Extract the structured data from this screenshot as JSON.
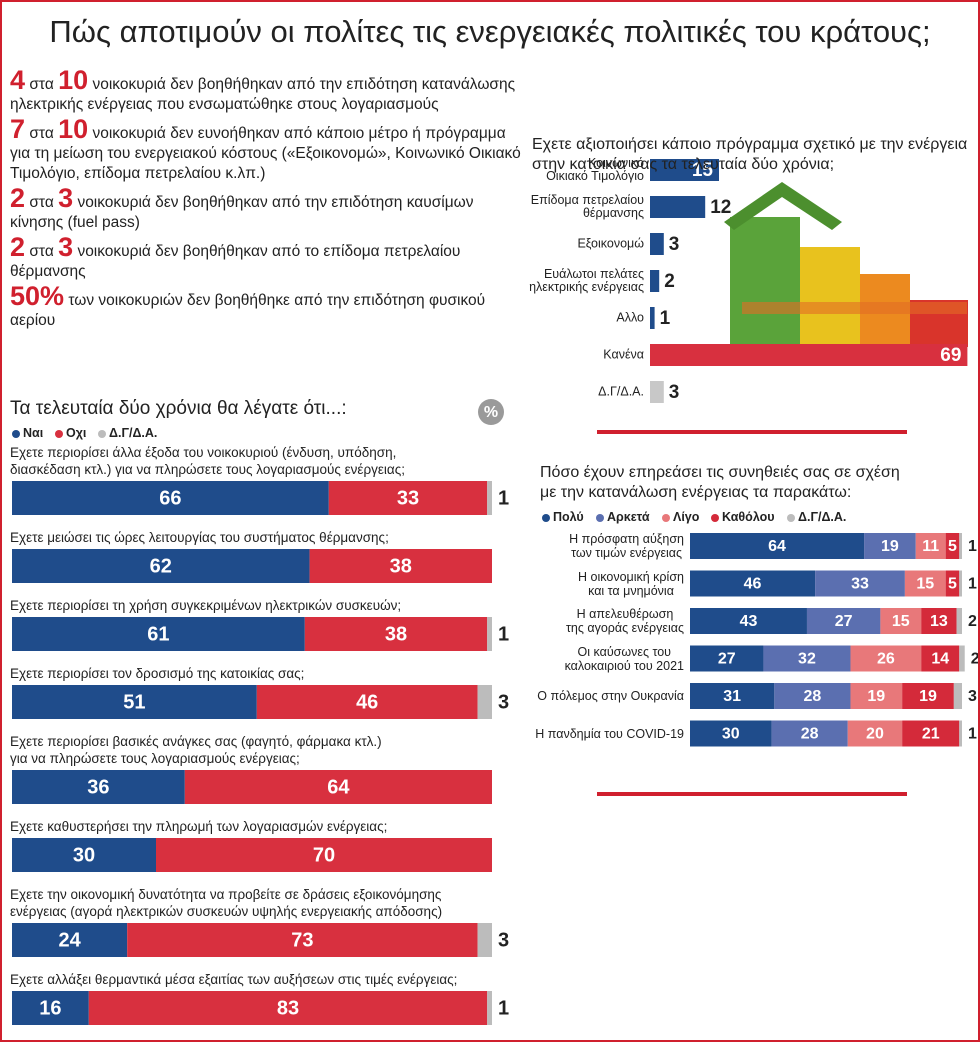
{
  "title": "Πώς αποτιμούν οι πολίτες τις ενεργειακές πολιτικές του κράτους;",
  "facts": [
    {
      "lead": "4",
      "mid": "στα",
      "lead2": "10",
      "text": "νοικοκυριά δεν βοηθήθηκαν από την επιδότηση κατανάλωσης ηλεκτρικής ενέργειας που ενσωματώθηκε στους λογαριασμούς"
    },
    {
      "lead": "7",
      "mid": "στα",
      "lead2": "10",
      "text": "νοικοκυριά δεν ευνοήθηκαν από κάποιο μέτρο ή πρόγραμμα για τη μείωση του ενεργειακού κόστους («Εξοικονομώ», Κοινωνικό Οικιακό Τιμολόγιο, επίδομα πετρελαίου κ.λπ.)"
    },
    {
      "lead": "2",
      "mid": "στα",
      "lead2": "3",
      "text": "νοικοκυριά δεν βοηθήθηκαν από την επιδότηση καυσίμων κίνησης (fuel pass)"
    },
    {
      "lead": "2",
      "mid": "στα",
      "lead2": "3",
      "text": "νοικοκυριά δεν βοηθήθηκαν από το επίδομα πετρελαίου θέρμανσης"
    },
    {
      "lead": "50%",
      "text": "των νοικοκυριών δεν βοηθήθηκε από την επιδότηση φυσικού αερίου"
    }
  ],
  "chart_data": [
    {
      "type": "stacked-bar",
      "title": "Τα τελευταία δύο χρόνια θα λέγατε ότι...:",
      "unit_badge": "%",
      "categories": [
        "Εχετε περιορίσει άλλα έξοδα του νοικοκυριού (ένδυση, υπόδηση,\nδιασκέδαση κτλ.) για να πληρώσετε τους λογαριασμούς ενέργειας;",
        "Εχετε μειώσει τις ώρες λειτουργίας του συστήματος θέρμανσης;",
        "Εχετε περιορίσει τη χρήση συγκεκριμένων ηλεκτρικών συσκευών;",
        "Εχετε περιορίσει τον δροσισμό της κατοικίας σας;",
        "Εχετε περιορίσει βασικές ανάγκες σας (φαγητό, φάρμακα κτλ.)\nγια να πληρώσετε τους λογαριασμούς ενέργειας;",
        "Εχετε καθυστερήσει την πληρωμή των λογαριασμών ενέργειας;",
        "Εχετε την οικονομική δυνατότητα να προβείτε σε δράσεις εξοικονόμησης\nενέργειας (αγορά ηλεκτρικών συσκευών υψηλής ενεργειακής απόδοσης)",
        "Εχετε αλλάξει θερμαντικά μέσα εξαιτίας των αυξήσεων στις τιμές ενέργειας;"
      ],
      "series": [
        {
          "name": "Ναι",
          "color": "#1f4c8b",
          "values": [
            66,
            62,
            61,
            51,
            36,
            30,
            24,
            16
          ]
        },
        {
          "name": "Οχι",
          "color": "#d8303f",
          "values": [
            33,
            38,
            38,
            46,
            64,
            70,
            73,
            83
          ]
        },
        {
          "name": "Δ.Γ/Δ.Α.",
          "color": "#bcbcbc",
          "values": [
            1,
            null,
            1,
            3,
            null,
            null,
            3,
            1
          ]
        }
      ],
      "xlim": [
        0,
        100
      ]
    },
    {
      "type": "bar",
      "title": "Εχετε αξιοποιήσει κάποιο πρόγραμμα σχετικό με την ενέργεια στην κατοικία σας τα τελευταία δύο χρόνια;",
      "categories": [
        "Κοινωνικό\nΟικιακό Τιμολόγιο",
        "Επίδομα πετρελαίου\nθέρμανσης",
        "Εξοικονομώ",
        "Ευάλωτοι πελάτες\nηλεκτρικής ενέργειας",
        "Αλλο",
        "Κανένα",
        "Δ.Γ/Δ.Α."
      ],
      "values": [
        15,
        12,
        3,
        2,
        1,
        69,
        3
      ],
      "colors": [
        "#1f4c8b",
        "#1f4c8b",
        "#1f4c8b",
        "#1f4c8b",
        "#1f4c8b",
        "#d8303f",
        "#c8c8c8"
      ],
      "xlim": [
        0,
        70
      ]
    },
    {
      "type": "stacked-bar",
      "title": "Πόσο έχουν επηρεάσει τις συνηθειές σας σε σχέση\nμε την κατανάλωση ενέργειας τα παρακάτω:",
      "categories": [
        "Η πρόσφατη αύξηση\nτων τιμών ενέργειας",
        "Η οικονομική κρίση\nκαι τα μνημόνια",
        "Η απελευθέρωση\nτης αγοράς ενέργειας",
        "Οι καύσωνες του\nκαλοκαιριού του 2021",
        "Ο πόλεμος στην Ουκρανία",
        "Η πανδημία του COVID-19"
      ],
      "series": [
        {
          "name": "Πολύ",
          "color": "#1f4c8b",
          "values": [
            64,
            46,
            43,
            27,
            31,
            30
          ]
        },
        {
          "name": "Αρκετά",
          "color": "#5b6fb0",
          "values": [
            19,
            33,
            27,
            32,
            28,
            28
          ]
        },
        {
          "name": "Λίγο",
          "color": "#e8787a",
          "values": [
            11,
            15,
            15,
            26,
            19,
            20
          ]
        },
        {
          "name": "Καθόλου",
          "color": "#d42a3a",
          "values": [
            5,
            5,
            13,
            14,
            19,
            21
          ]
        },
        {
          "name": "Δ.Γ/Δ.Α.",
          "color": "#bcbcbc",
          "values": [
            1,
            1,
            2,
            2,
            3,
            1
          ]
        }
      ],
      "xlim": [
        0,
        100
      ]
    }
  ]
}
